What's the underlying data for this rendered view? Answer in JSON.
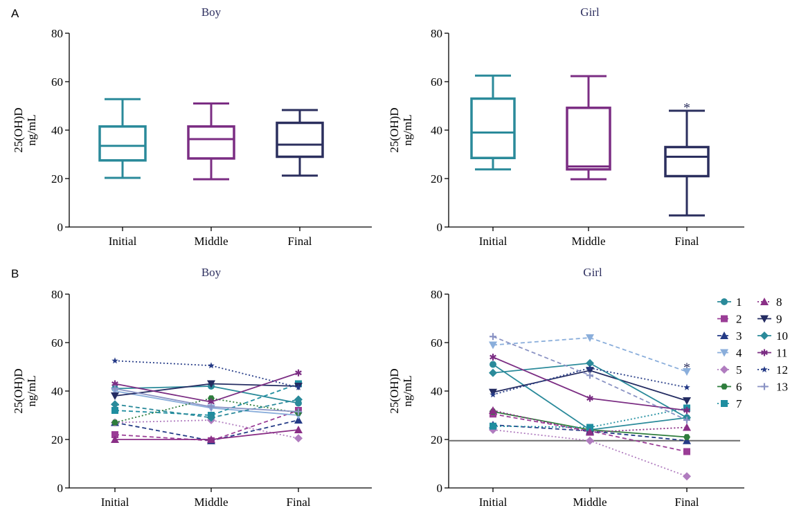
{
  "figure": {
    "panel_labels": [
      "A",
      "B"
    ]
  },
  "colors": {
    "initial": "#2a8a9a",
    "middle": "#7b2d83",
    "final": "#2b2f5e",
    "threshold": "#6b6b6b"
  },
  "chart_data": [
    {
      "id": "A-boy",
      "type": "box",
      "title": "Boy",
      "ylabel": [
        "25(OH)D",
        "ng/mL"
      ],
      "ylim": [
        0,
        80
      ],
      "yticks": [
        0,
        20,
        40,
        60,
        80
      ],
      "categories": [
        "Initial",
        "Middle",
        "Final"
      ],
      "boxes": [
        {
          "min": 20.3,
          "q1": 27.5,
          "median": 33.5,
          "q3": 41.5,
          "max": 52.8
        },
        {
          "min": 19.7,
          "q1": 28.3,
          "median": 36.3,
          "q3": 41.5,
          "max": 51.0
        },
        {
          "min": 21.2,
          "q1": 29.0,
          "median": 34.0,
          "q3": 43.0,
          "max": 48.3
        }
      ]
    },
    {
      "id": "A-girl",
      "type": "box",
      "title": "Girl",
      "ylabel": [
        "25(OH)D",
        "ng/mL"
      ],
      "ylim": [
        0,
        80
      ],
      "yticks": [
        0,
        20,
        40,
        60,
        80
      ],
      "categories": [
        "Initial",
        "Middle",
        "Final"
      ],
      "boxes": [
        {
          "min": 23.8,
          "q1": 28.5,
          "median": 39.0,
          "q3": 53.0,
          "max": 62.5
        },
        {
          "min": 19.7,
          "q1": 23.8,
          "median": 25.0,
          "q3": 49.2,
          "max": 62.3
        },
        {
          "min": 4.8,
          "q1": 21.0,
          "median": 29.0,
          "q3": 33.0,
          "max": 48.0
        }
      ],
      "annotations": [
        {
          "category": "Final",
          "y": 50,
          "text": "*"
        }
      ]
    },
    {
      "id": "B-boy",
      "type": "line",
      "title": "Boy",
      "ylabel": [
        "25(OH)D",
        "ng/mL"
      ],
      "ylim": [
        0,
        80
      ],
      "yticks": [
        0,
        20,
        40,
        60,
        80
      ],
      "categories": [
        "Initial",
        "Middle",
        "Final"
      ],
      "series": [
        {
          "name": "1",
          "values": [
            41,
            42,
            35
          ],
          "color": "#2a8a9a",
          "marker": "circle",
          "dash": "solid"
        },
        {
          "name": "2",
          "values": [
            22,
            19.5,
            32
          ],
          "color": "#9a3d96",
          "marker": "square",
          "dash": "dashed"
        },
        {
          "name": "3",
          "values": [
            27,
            19.5,
            28
          ],
          "color": "#243a86",
          "marker": "triangle",
          "dash": "dashed"
        },
        {
          "name": "4",
          "values": [
            40,
            33,
            30
          ],
          "color": "#8aaedb",
          "marker": "tri-down",
          "dash": "solid"
        },
        {
          "name": "5",
          "values": [
            27,
            28,
            20.5
          ],
          "color": "#b07cbf",
          "marker": "diamond",
          "dash": "dotted"
        },
        {
          "name": "6",
          "values": [
            27,
            37,
            31
          ],
          "color": "#2e7d3c",
          "marker": "hexagon",
          "dash": "dotted"
        },
        {
          "name": "7",
          "values": [
            32,
            30,
            43
          ],
          "color": "#1f8ea0",
          "marker": "square",
          "dash": "dashed"
        },
        {
          "name": "8",
          "values": [
            20,
            20,
            24
          ],
          "color": "#8a2f86",
          "marker": "triangle",
          "dash": "solid"
        },
        {
          "name": "9",
          "values": [
            38,
            43,
            42
          ],
          "color": "#242c62",
          "marker": "tri-down",
          "dash": "solid"
        },
        {
          "name": "10",
          "values": [
            34.5,
            29,
            36.5
          ],
          "color": "#2a8a9a",
          "marker": "diamond",
          "dash": "dashed"
        },
        {
          "name": "11",
          "values": [
            43,
            35.5,
            47.5
          ],
          "color": "#7b2d83",
          "marker": "asterisk",
          "dash": "solid"
        },
        {
          "name": "12",
          "values": [
            52.5,
            50.5,
            41.5
          ],
          "color": "#243a86",
          "marker": "star",
          "dash": "dotted"
        },
        {
          "name": "13",
          "values": [
            41,
            33.5,
            31.5
          ],
          "color": "#8a93c4",
          "marker": "plus",
          "dash": "solid"
        }
      ]
    },
    {
      "id": "B-girl",
      "type": "line",
      "title": "Girl",
      "ylabel": [
        "25(OH)D",
        "ng/mL"
      ],
      "ylim": [
        0,
        80
      ],
      "yticks": [
        0,
        20,
        40,
        60,
        80
      ],
      "categories": [
        "Initial",
        "Middle",
        "Final"
      ],
      "threshold": 19.5,
      "series": [
        {
          "name": "1",
          "values": [
            51,
            24,
            29
          ],
          "color": "#2a8a9a",
          "marker": "circle",
          "dash": "solid"
        },
        {
          "name": "2",
          "values": [
            30.5,
            23.5,
            15
          ],
          "color": "#9a3d96",
          "marker": "square",
          "dash": "dashed"
        },
        {
          "name": "3",
          "values": [
            26,
            23.5,
            19.5
          ],
          "color": "#243a86",
          "marker": "triangle",
          "dash": "dashed"
        },
        {
          "name": "4",
          "values": [
            59,
            62,
            48
          ],
          "color": "#8aaedb",
          "marker": "tri-down",
          "dash": "dashed"
        },
        {
          "name": "5",
          "values": [
            24,
            19.5,
            4.8
          ],
          "color": "#b07cbf",
          "marker": "diamond",
          "dash": "dotted"
        },
        {
          "name": "6",
          "values": [
            31.5,
            24,
            21
          ],
          "color": "#2e7d3c",
          "marker": "hexagon",
          "dash": "solid"
        },
        {
          "name": "7",
          "values": [
            25.5,
            25,
            33
          ],
          "color": "#1f8ea0",
          "marker": "square",
          "dash": "dotted"
        },
        {
          "name": "8",
          "values": [
            32,
            23,
            25
          ],
          "color": "#8a2f86",
          "marker": "triangle",
          "dash": "dotted"
        },
        {
          "name": "9",
          "values": [
            39.5,
            48.5,
            36
          ],
          "color": "#242c62",
          "marker": "tri-down",
          "dash": "solid"
        },
        {
          "name": "10",
          "values": [
            47.5,
            51.5,
            29
          ],
          "color": "#2a8a9a",
          "marker": "diamond",
          "dash": "solid"
        },
        {
          "name": "11",
          "values": [
            54,
            37,
            32
          ],
          "color": "#7b2d83",
          "marker": "asterisk",
          "dash": "solid"
        },
        {
          "name": "12",
          "values": [
            38.5,
            49.5,
            41.5
          ],
          "color": "#243a86",
          "marker": "star",
          "dash": "dotted"
        },
        {
          "name": "13",
          "values": [
            62.5,
            46.5,
            28
          ],
          "color": "#8a93c4",
          "marker": "plus",
          "dash": "dashed"
        }
      ],
      "annotations": [
        {
          "category": "Final",
          "y": 50.5,
          "text": "*"
        }
      ],
      "legend": {
        "placement": "right",
        "columns": [
          [
            "1",
            "2",
            "3",
            "4",
            "5",
            "6",
            "7"
          ],
          [
            "8",
            "9",
            "10",
            "11",
            "12",
            "13"
          ]
        ]
      }
    }
  ]
}
